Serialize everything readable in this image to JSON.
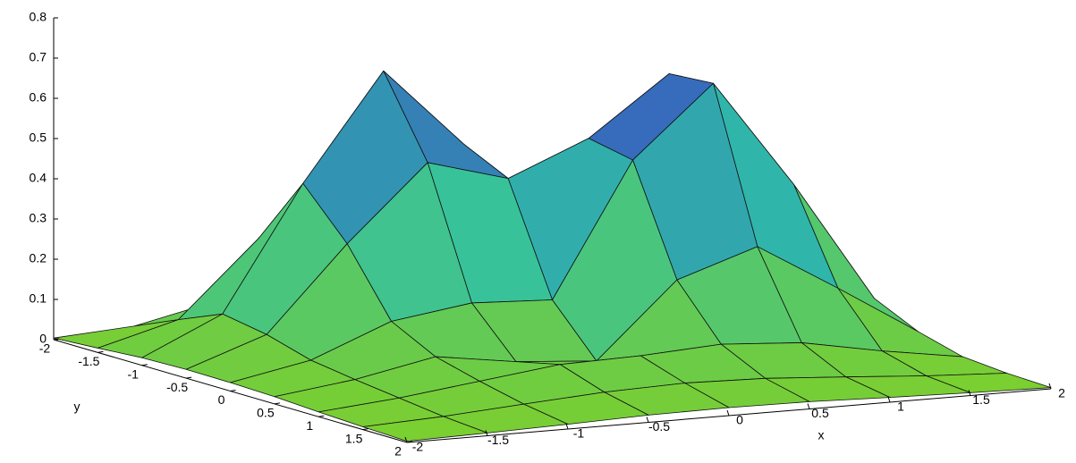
{
  "chart_data": {
    "type": "surface",
    "x_label": "x",
    "y_label": "y",
    "x": [
      -2,
      -1.5,
      -1,
      -0.5,
      0,
      0.5,
      1,
      1.5,
      2
    ],
    "y": [
      -2,
      -1.5,
      -1,
      -0.5,
      0,
      0.5,
      1,
      1.5,
      2
    ],
    "z": [
      [
        0.004,
        0.017,
        0.061,
        0.099,
        0.069,
        0.03,
        0.014,
        0.007,
        0.003
      ],
      [
        0.011,
        0.065,
        0.251,
        0.407,
        0.274,
        0.109,
        0.062,
        0.033,
        0.01
      ],
      [
        0.019,
        0.111,
        0.419,
        0.682,
        0.483,
        0.289,
        0.273,
        0.158,
        0.04
      ],
      [
        0.022,
        0.092,
        0.301,
        0.486,
        0.43,
        0.513,
        0.657,
        0.391,
        0.095
      ],
      [
        0.021,
        0.06,
        0.14,
        0.169,
        0.16,
        0.491,
        0.665,
        0.397,
        0.097
      ],
      [
        0.018,
        0.044,
        0.084,
        0.055,
        0.04,
        0.225,
        0.291,
        0.171,
        0.046
      ],
      [
        0.012,
        0.03,
        0.055,
        0.08,
        0.085,
        0.097,
        0.084,
        0.047,
        0.016
      ],
      [
        0.007,
        0.016,
        0.03,
        0.043,
        0.049,
        0.044,
        0.031,
        0.017,
        0.007
      ],
      [
        0.003,
        0.007,
        0.012,
        0.018,
        0.02,
        0.018,
        0.012,
        0.007,
        0.003
      ]
    ],
    "xlim": [
      -2,
      2
    ],
    "ylim": [
      -2,
      2
    ],
    "zlim": [
      0,
      0.8
    ],
    "xticks": [
      -2,
      -1.5,
      -1,
      -0.5,
      0,
      0.5,
      1,
      1.5,
      2
    ],
    "yticks": [
      -2,
      -1.5,
      -1,
      -0.5,
      0,
      0.5,
      1,
      1.5,
      2
    ],
    "zticks": [
      0,
      0.1,
      0.2,
      0.3,
      0.4,
      0.5,
      0.6,
      0.7,
      0.8
    ],
    "colormap": [
      "#7ccf2e",
      "#2fc0a8",
      "#3b3fc4"
    ]
  }
}
